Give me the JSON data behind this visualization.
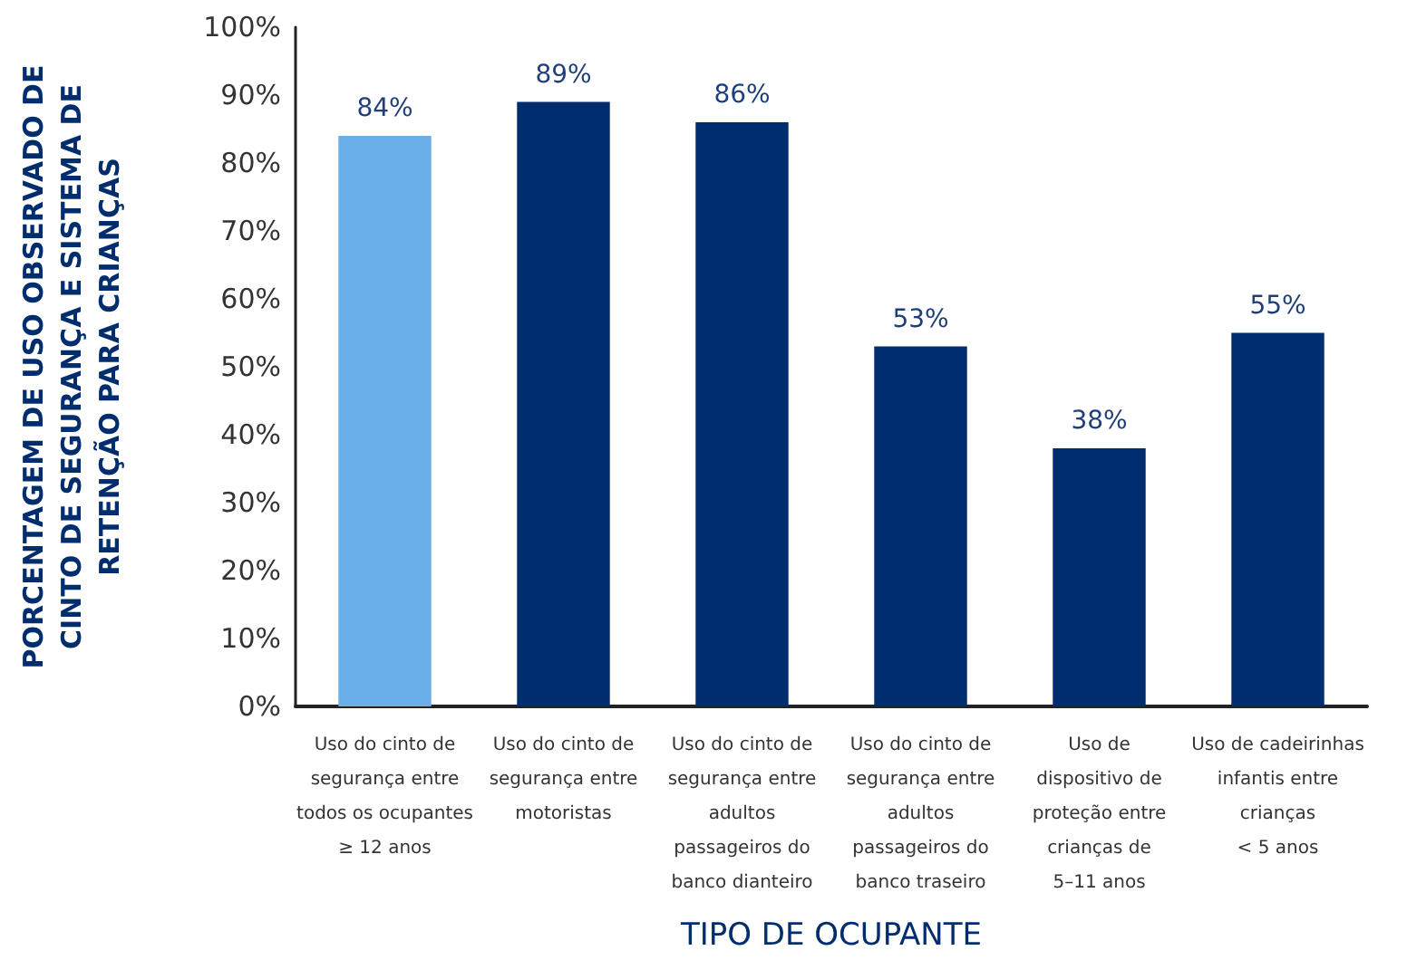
{
  "chart_data": {
    "type": "bar",
    "xlabel": "TIPO DE OCUPANTE",
    "ylabel": "PORCENTAGEM DE USO OBSERVADO DE\nCINTO DE SEGURANÇA E SISTEMA DE\nRETENÇÃO PARA CRIANÇAS",
    "categories": [
      "Uso do cinto de\nsegurança entre\ntodos os ocupantes\n≥ 12 anos",
      "Uso do cinto de\nsegurança entre\nmotoristas",
      "Uso do cinto de\nsegurança entre\nadultos\npassageiros do\nbanco dianteiro",
      "Uso do cinto de\nsegurança entre\nadultos\npassageiros do\nbanco traseiro",
      "Uso de\ndispositivo de\nproteção entre\ncrianças de\n5–11 anos",
      "Uso de cadeirinhas\ninfantis entre\ncrianças\n< 5 anos"
    ],
    "values": [
      84,
      89,
      86,
      53,
      38,
      55
    ],
    "value_labels": [
      "84%",
      "89%",
      "86%",
      "53%",
      "38%",
      "55%"
    ],
    "colors": [
      "#6aafe8",
      "#002d6e",
      "#002d6e",
      "#002d6e",
      "#002d6e",
      "#002d6e"
    ],
    "ylim": [
      0,
      100
    ],
    "yticks": [
      {
        "value": 0,
        "label": "0%"
      },
      {
        "value": 10,
        "label": "10%"
      },
      {
        "value": 20,
        "label": "20%"
      },
      {
        "value": 30,
        "label": "30%"
      },
      {
        "value": 40,
        "label": "40%"
      },
      {
        "value": 50,
        "label": "50%"
      },
      {
        "value": 60,
        "label": "60%"
      },
      {
        "value": 70,
        "label": "70%"
      },
      {
        "value": 80,
        "label": "80%"
      },
      {
        "value": 90,
        "label": "90%"
      },
      {
        "value": 100,
        "label": "100%"
      }
    ],
    "grid": false
  }
}
